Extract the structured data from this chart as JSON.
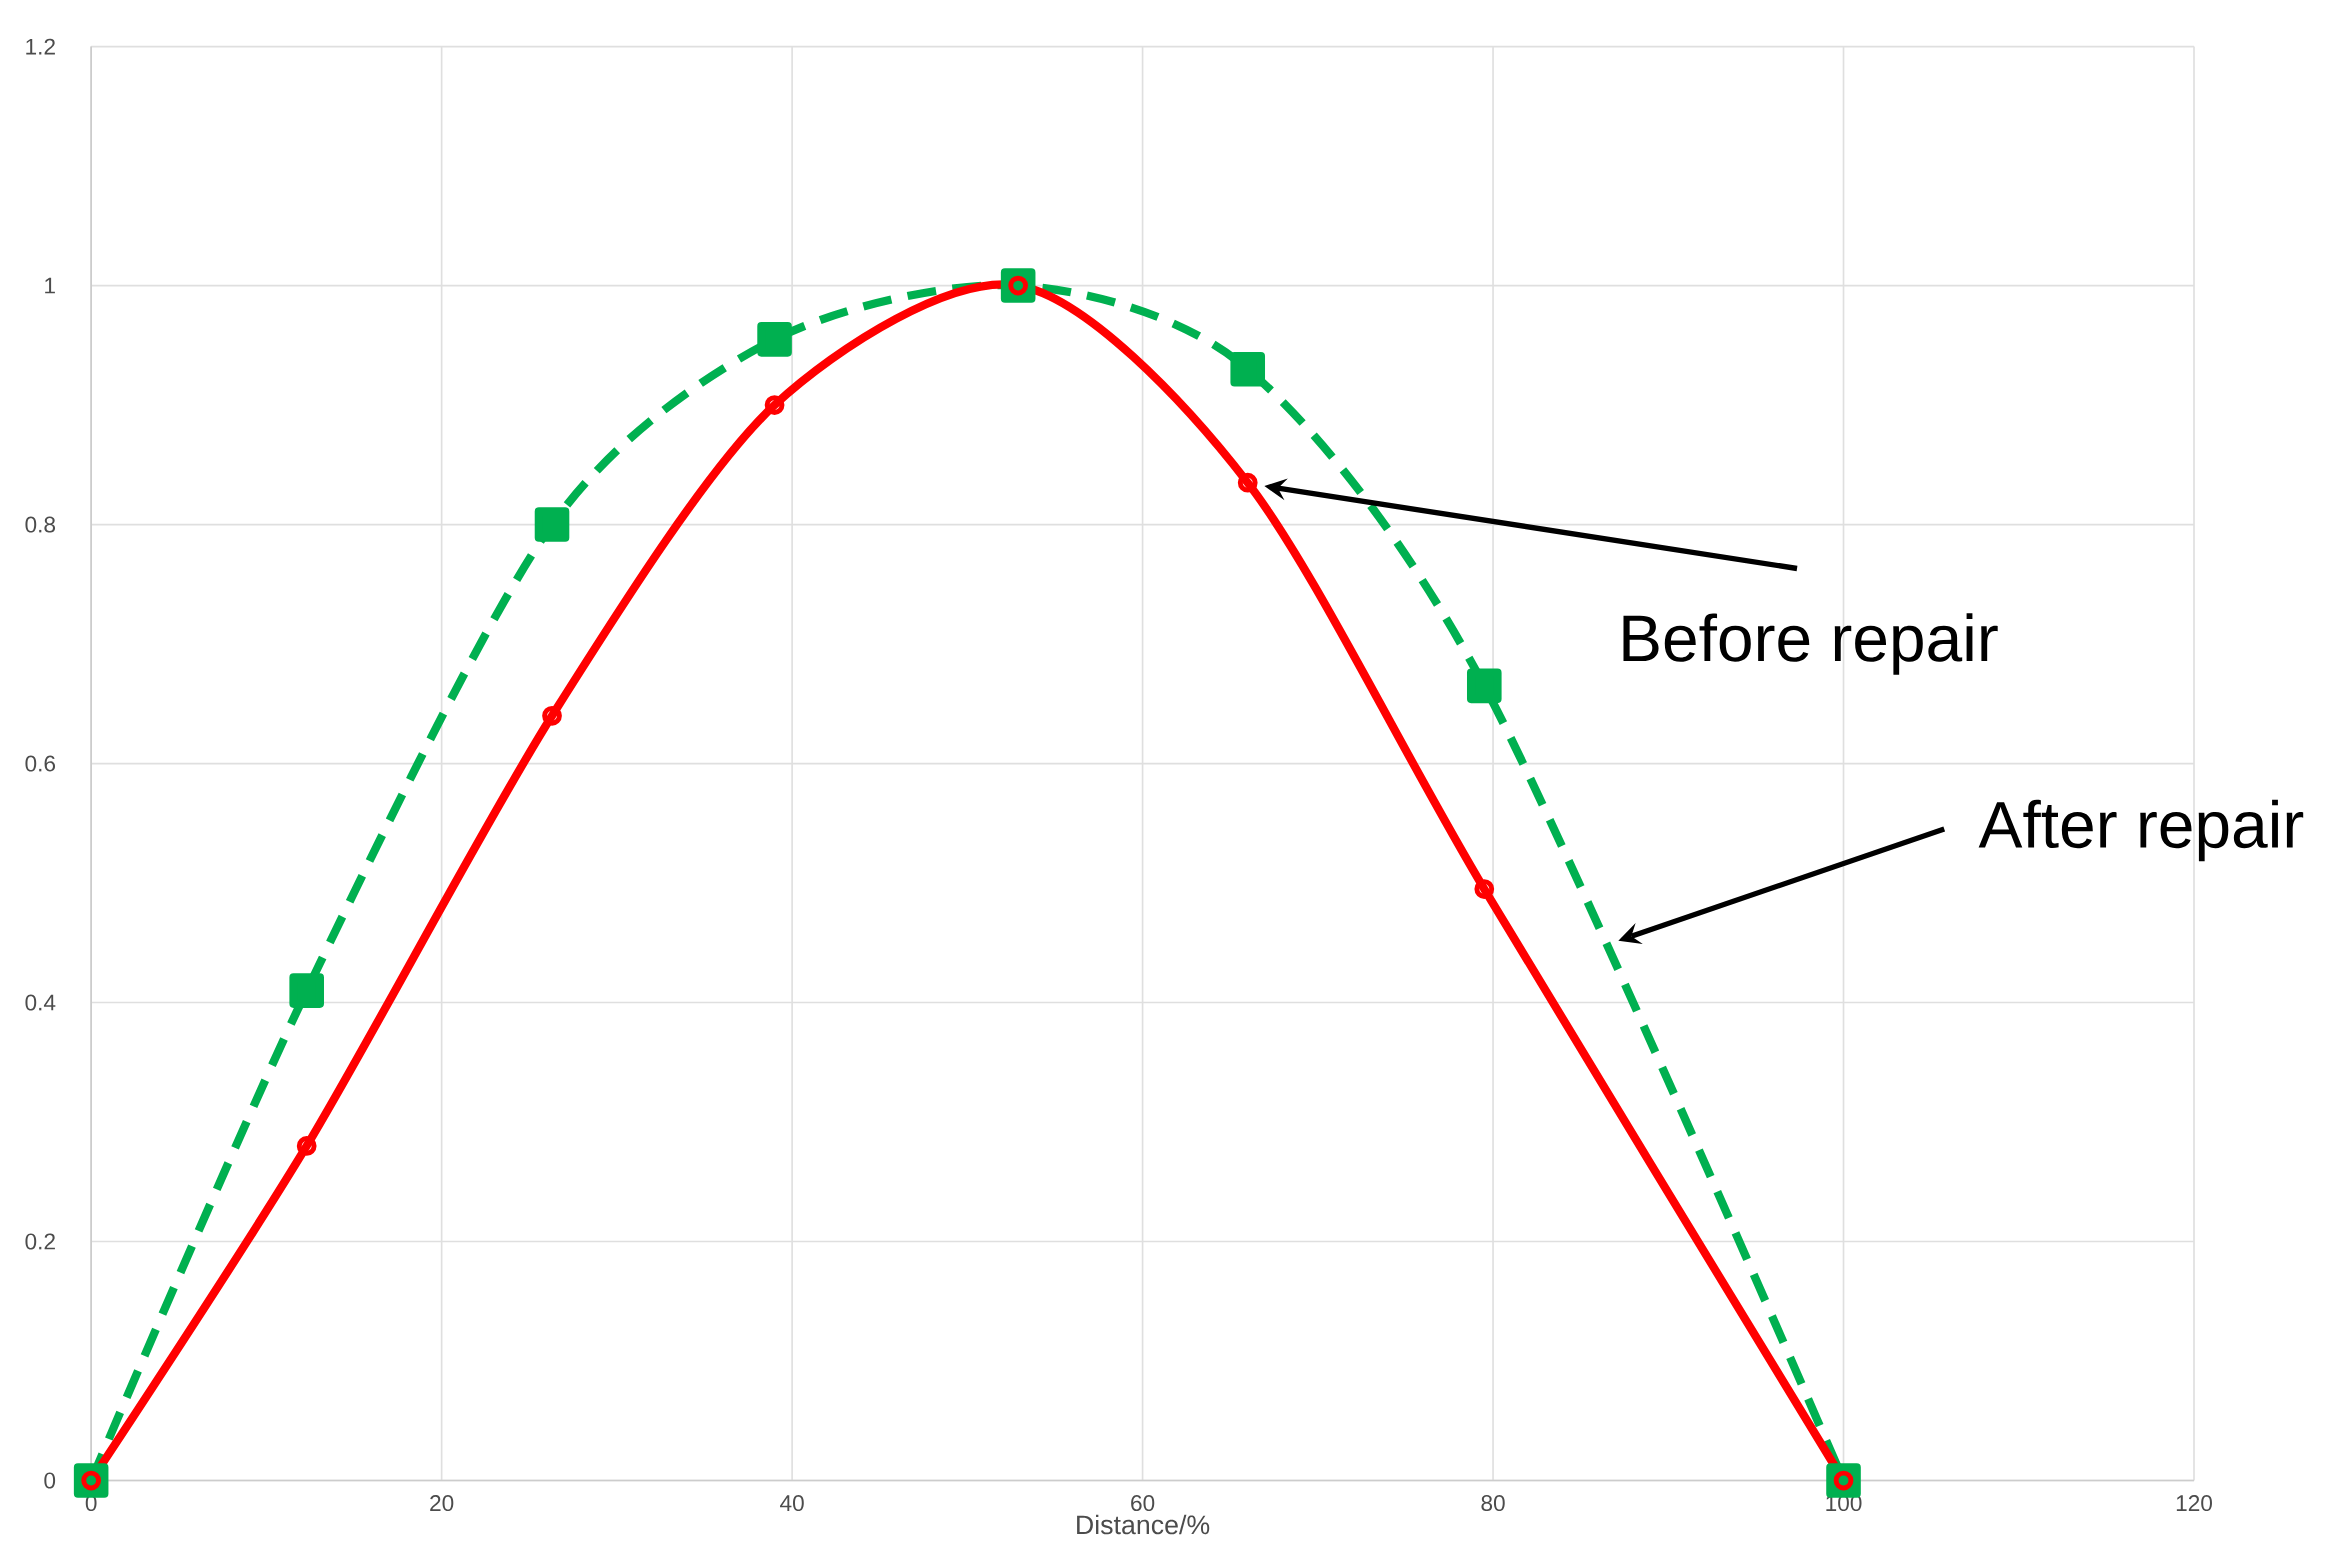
{
  "chart_data": {
    "type": "line",
    "xlabel": "Distance/%",
    "xlim": [
      0,
      120
    ],
    "ylim": [
      0,
      1.2
    ],
    "xticks": [
      0,
      20,
      40,
      60,
      80,
      100,
      120
    ],
    "yticks": [
      0,
      0.2,
      0.4,
      0.6,
      0.8,
      1,
      1.2
    ],
    "grid": true,
    "x": [
      0,
      12.3,
      26.3,
      39.0,
      52.9,
      66.0,
      79.5,
      100
    ],
    "series": [
      {
        "color": "#00b050",
        "marker": "square",
        "line_style": "dashed",
        "values": [
          0,
          0.41,
          0.8,
          0.955,
          1.0,
          0.93,
          0.665,
          0
        ]
      },
      {
        "color": "#ff0000",
        "marker": "circle",
        "line_style": "solid",
        "values": [
          0,
          0.28,
          0.64,
          0.9,
          1.0,
          0.835,
          0.495,
          0
        ]
      }
    ],
    "annotations": [
      "Before repair",
      "After repair"
    ]
  }
}
